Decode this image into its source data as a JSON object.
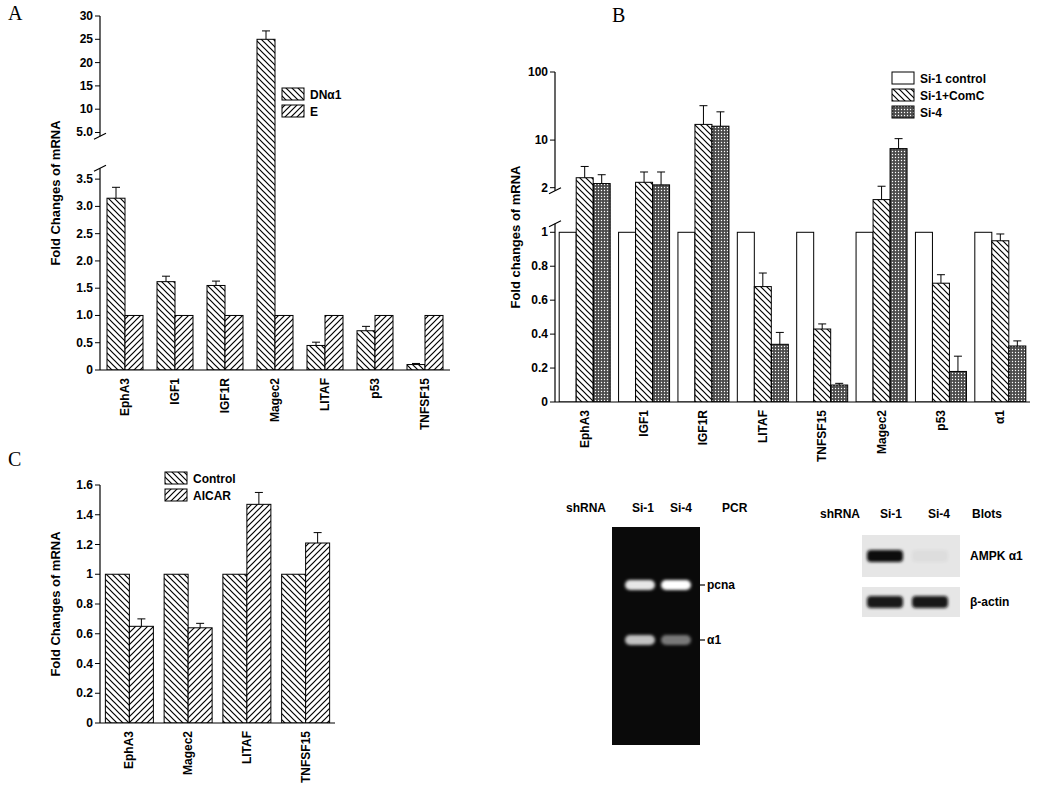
{
  "chart_data": [
    {
      "type": "bar",
      "panel": "A",
      "y_label": "Fold Changes of mRNA",
      "categories": [
        "EphA3",
        "IGF1",
        "IGF1R",
        "Magec2",
        "LITAF",
        "p53",
        "TNFSF15"
      ],
      "series": [
        {
          "name": "DNα1",
          "color": "#000000",
          "values": [
            3.15,
            1.62,
            1.55,
            25,
            0.45,
            0.72,
            0.1
          ],
          "errors": [
            0.2,
            0.1,
            0.08,
            1.8,
            0.06,
            0.08,
            0.02
          ]
        },
        {
          "name": "E",
          "color": "#000000",
          "values": [
            1,
            1,
            1,
            1,
            1,
            1,
            1
          ]
        }
      ],
      "ylim": [
        0,
        30
      ],
      "ybreak": [
        3.7,
        4.2
      ],
      "yticks": [
        0,
        0.5,
        {
          "value": 1,
          "label": "1.0"
        },
        1.5,
        {
          "value": 2,
          "label": "2.0"
        },
        2.5,
        {
          "value": 3,
          "label": "3.0"
        },
        3.5,
        {
          "value": 5,
          "label": "5.0"
        },
        10,
        15,
        20,
        25,
        30
      ],
      "legend": "upper right"
    },
    {
      "type": "bar",
      "panel": "B",
      "y_label": "Fold changes of mRNA",
      "categories": [
        "EphA3",
        "IGF1",
        "IGF1R",
        "LITAF",
        "TNFSF15",
        "Magec2",
        "p53",
        "α1"
      ],
      "series": [
        {
          "name": "Si-1 control",
          "color": "#000000",
          "values": [
            1,
            1,
            1,
            1,
            1,
            1,
            1,
            1
          ]
        },
        {
          "name": "Si-1+ComC",
          "color": "#000000",
          "values": [
            2.8,
            2.4,
            17,
            0.68,
            0.43,
            1.6,
            0.7,
            0.95
          ],
          "errors": [
            1.3,
            1.0,
            15,
            0.08,
            0.03,
            0.5,
            0.05,
            0.04
          ]
        },
        {
          "name": "Si-4",
          "color": "#000000",
          "values": [
            2.3,
            2.2,
            16,
            0.34,
            0.1,
            7.5,
            0.18,
            0.33
          ],
          "errors": [
            0.8,
            1.2,
            10,
            0.07,
            0.01,
            3,
            0.09,
            0.03
          ]
        }
      ],
      "ylim": [
        0,
        100
      ],
      "ybreak": [
        1.05,
        1.8
      ],
      "log": "y",
      "yticks": [
        0,
        0.2,
        0.4,
        0.6,
        0.8,
        1,
        2,
        10,
        100
      ],
      "legend": "upper right"
    },
    {
      "type": "bar",
      "panel": "C",
      "y_label": "Fold Changes of mRNA",
      "categories": [
        "EphA3",
        "Magec2",
        "LITAF",
        "TNFSF15"
      ],
      "series": [
        {
          "name": "Control",
          "color": "#000000",
          "values": [
            1,
            1,
            1,
            1
          ]
        },
        {
          "name": "AICAR",
          "color": "#000000",
          "values": [
            0.65,
            0.64,
            1.47,
            1.21
          ],
          "errors": [
            0.05,
            0.03,
            0.08,
            0.07
          ]
        }
      ],
      "ylim": [
        0,
        1.6
      ],
      "yticks": [
        0,
        0.2,
        0.4,
        0.6,
        0.8,
        1,
        1.2,
        1.4,
        1.6
      ],
      "legend": "upper left"
    }
  ],
  "gels": [
    {
      "header": "shRNA",
      "lanes": [
        "Si-1",
        "Si-4"
      ],
      "title": "PCR",
      "bands": [
        "pcna",
        "α1"
      ]
    },
    {
      "header": "shRNA",
      "lanes": [
        "Si-1",
        "Si-4"
      ],
      "title": "Blots",
      "bands": [
        "AMPK α1",
        "β-actin"
      ]
    }
  ]
}
